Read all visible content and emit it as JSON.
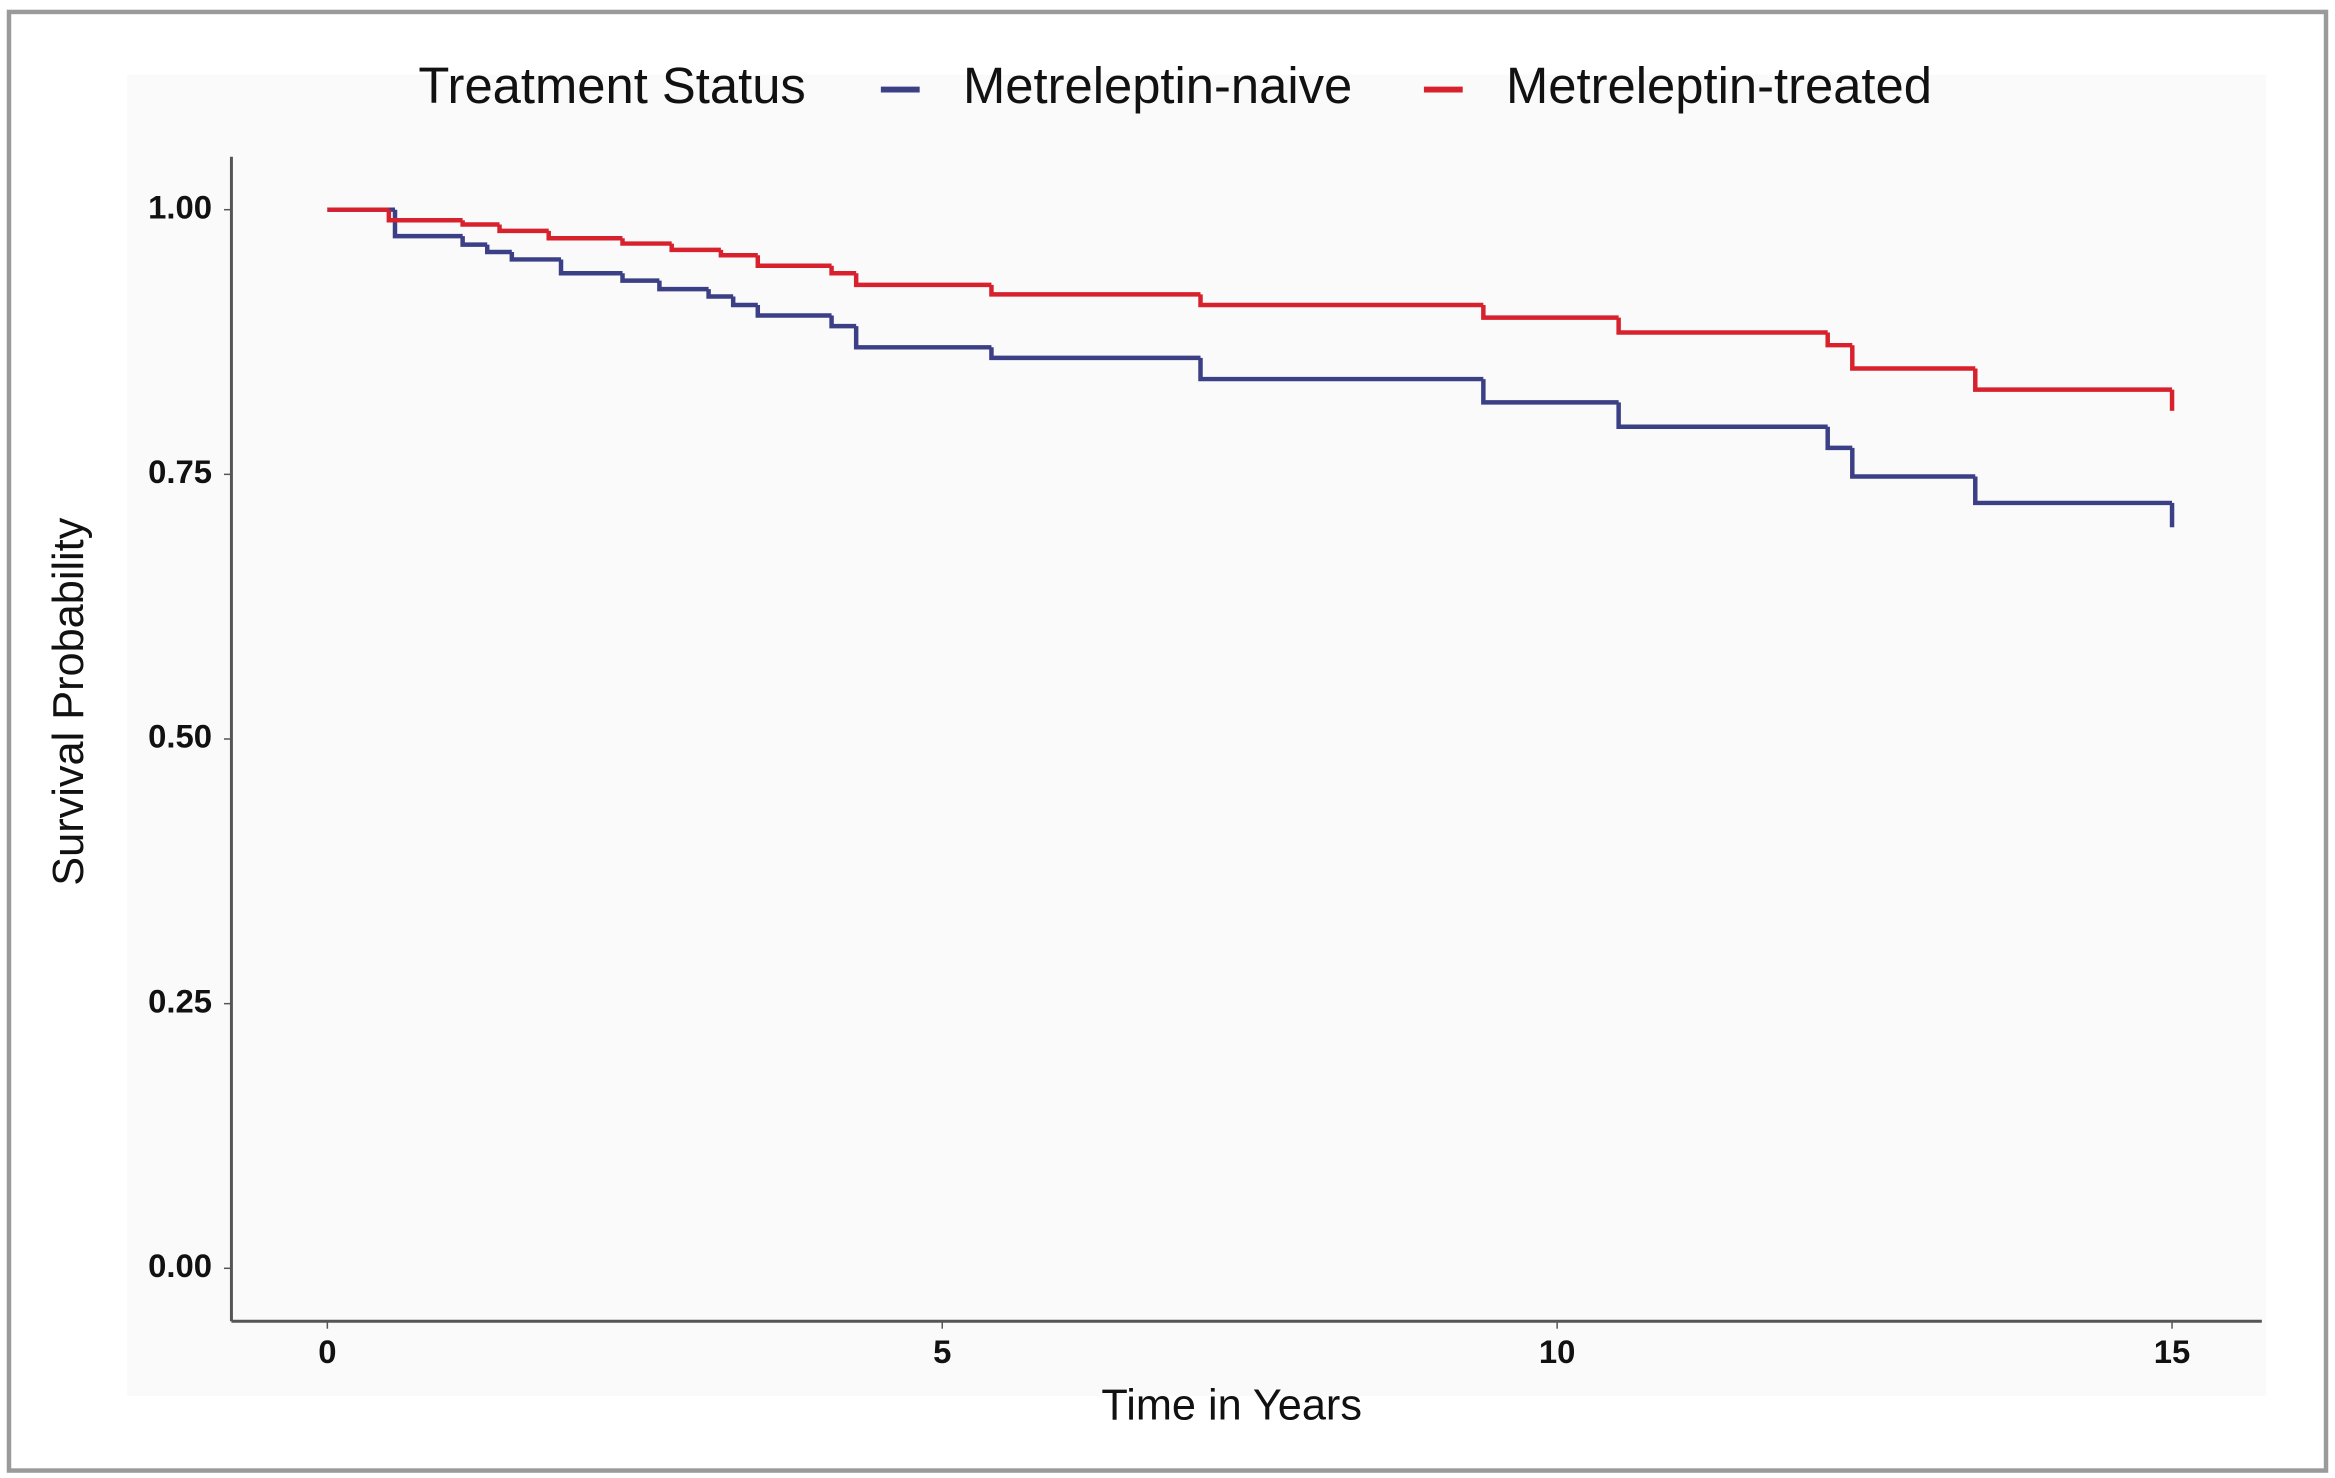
{
  "chart_data": {
    "type": "step",
    "legend_title": "Treatment Status",
    "x_label": "Time in Years",
    "y_label": "Survival Probability",
    "xlim": [
      -0.78,
      15.73
    ],
    "xticks": [
      0,
      5,
      10,
      15
    ],
    "ylim": [
      -0.05,
      1.05
    ],
    "yticks": [
      {
        "value": 0,
        "label": "0.00"
      },
      {
        "value": 0.25,
        "label": "0.25"
      },
      {
        "value": 0.5,
        "label": "0.50"
      },
      {
        "value": 0.75,
        "label": "0.75"
      },
      {
        "value": 1,
        "label": "1.00"
      }
    ],
    "legend_position": "top",
    "series": [
      {
        "name": "Metreleptin-naive",
        "color": "#3b3f86",
        "x": [
          0,
          0.55,
          1.1,
          1.3,
          1.5,
          1.9,
          2.4,
          2.7,
          3.1,
          3.3,
          3.5,
          4.1,
          4.3,
          5.4,
          7.1,
          9.4,
          10.5,
          12.2,
          12.4,
          13.4,
          15
        ],
        "values": [
          1.0,
          0.975,
          0.967,
          0.96,
          0.953,
          0.94,
          0.933,
          0.925,
          0.918,
          0.91,
          0.9,
          0.89,
          0.87,
          0.86,
          0.84,
          0.818,
          0.795,
          0.775,
          0.748,
          0.723,
          0.7
        ]
      },
      {
        "name": "Metreleptin-treated",
        "color": "#d7222e",
        "x": [
          0,
          0.5,
          1.1,
          1.4,
          1.8,
          2.4,
          2.8,
          3.2,
          3.5,
          4.1,
          4.3,
          5.4,
          7.1,
          9.4,
          10.5,
          12.2,
          12.4,
          13.4,
          15
        ],
        "values": [
          1.0,
          0.99,
          0.986,
          0.98,
          0.973,
          0.968,
          0.962,
          0.957,
          0.947,
          0.94,
          0.929,
          0.92,
          0.91,
          0.898,
          0.884,
          0.872,
          0.85,
          0.83,
          0.81
        ]
      }
    ]
  }
}
